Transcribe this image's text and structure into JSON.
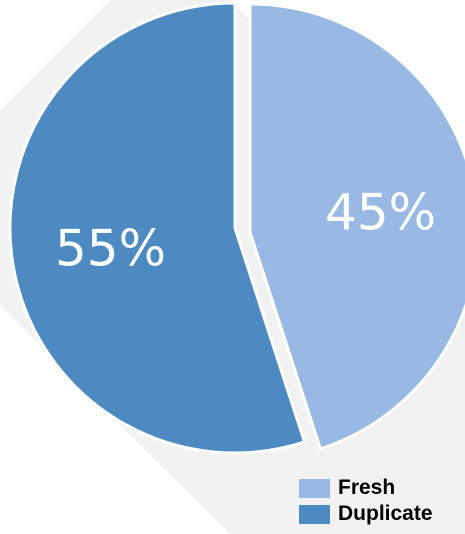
{
  "chart_data": {
    "type": "pie",
    "slices": [
      {
        "name": "Fresh",
        "value": 45,
        "label": "45%",
        "color": "#98b9e3"
      },
      {
        "name": "Duplicate",
        "value": 55,
        "label": "55%",
        "color": "#4d8ac2"
      }
    ],
    "legend": {
      "position": "bottom-right",
      "items": [
        "Fresh",
        "Duplicate"
      ]
    }
  }
}
